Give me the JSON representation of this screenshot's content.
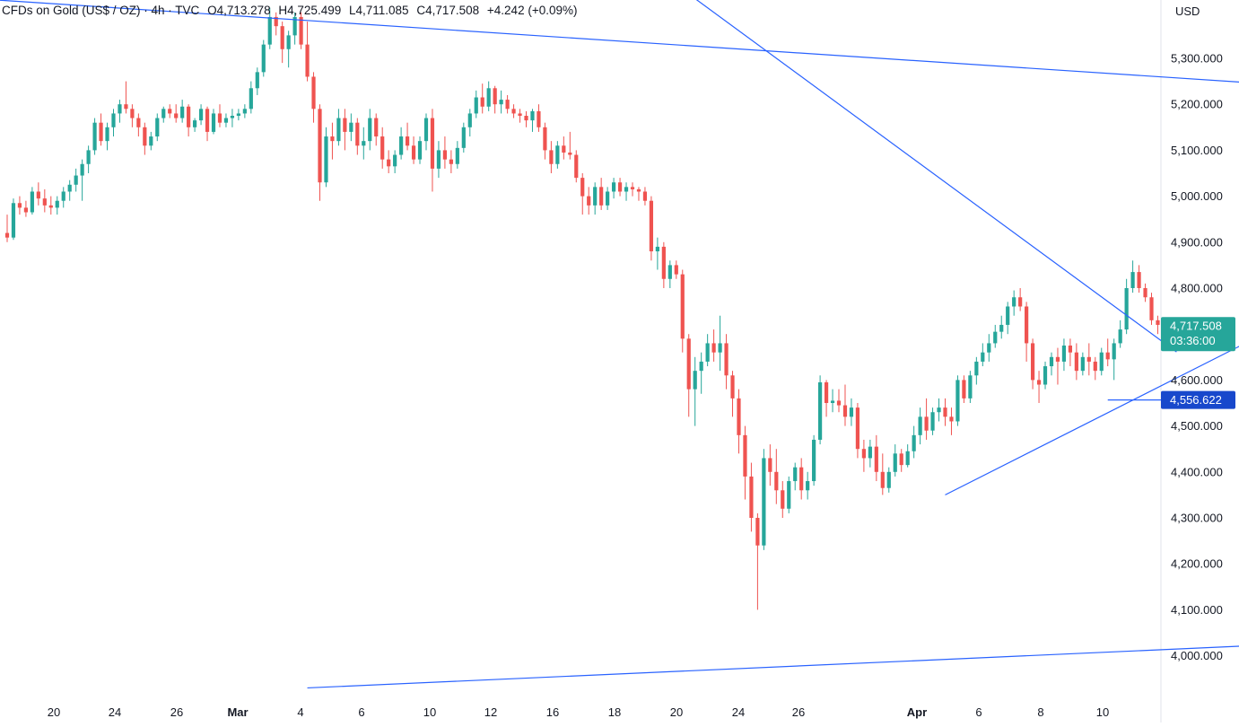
{
  "header": {
    "symbol": "CFDs on Gold (US$ / OZ) · 4h · TVC",
    "open": "O4,713.278",
    "high": "H4,725.499",
    "low": "L4,711.085",
    "close": "C4,717.508",
    "change": "+4.242 (+0.09%)"
  },
  "currency_label": "USD",
  "chart_data": {
    "type": "candlestick",
    "title": "CFDs on Gold (US$ / OZ) · 4h · TVC",
    "ylim": [
      3930,
      5420
    ],
    "y_ticks": [
      "5,300.000",
      "5,200.000",
      "5,100.000",
      "5,000.000",
      "4,900.000",
      "4,800.000",
      "4,700.000",
      "4,600.000",
      "4,500.000",
      "4,400.000",
      "4,300.000",
      "4,200.000",
      "4,100.000",
      "4,000.000"
    ],
    "y_tick_values": [
      5300,
      5200,
      5100,
      5000,
      4900,
      4800,
      4700,
      4600,
      4500,
      4400,
      4300,
      4200,
      4100,
      4000
    ],
    "x_labels": [
      {
        "text": "20",
        "bold": false
      },
      {
        "text": "24",
        "bold": false
      },
      {
        "text": "26",
        "bold": false
      },
      {
        "text": "Mar",
        "bold": true
      },
      {
        "text": "4",
        "bold": false
      },
      {
        "text": "6",
        "bold": false
      },
      {
        "text": "10",
        "bold": false
      },
      {
        "text": "12",
        "bold": false
      },
      {
        "text": "16",
        "bold": false
      },
      {
        "text": "18",
        "bold": false
      },
      {
        "text": "20",
        "bold": false
      },
      {
        "text": "24",
        "bold": false
      },
      {
        "text": "26",
        "bold": false
      },
      {
        "text": "Apr",
        "bold": true
      },
      {
        "text": "6",
        "bold": false
      },
      {
        "text": "8",
        "bold": false
      },
      {
        "text": "10",
        "bold": false
      }
    ],
    "candles": [
      [
        4920,
        4960,
        4900,
        4910
      ],
      [
        4910,
        4995,
        4905,
        4985
      ],
      [
        4985,
        5000,
        4960,
        4975
      ],
      [
        4975,
        4990,
        4955,
        4965
      ],
      [
        4965,
        5020,
        4960,
        5010
      ],
      [
        5010,
        5030,
        4980,
        4995
      ],
      [
        4995,
        5015,
        4965,
        4980
      ],
      [
        4980,
        5000,
        4960,
        4975
      ],
      [
        4975,
        5000,
        4960,
        4990
      ],
      [
        4990,
        5020,
        4975,
        5010
      ],
      [
        5010,
        5035,
        4990,
        5025
      ],
      [
        5025,
        5060,
        5010,
        5045
      ],
      [
        5045,
        5080,
        4990,
        5070
      ],
      [
        5070,
        5110,
        5050,
        5100
      ],
      [
        5100,
        5170,
        5090,
        5160
      ],
      [
        5160,
        5180,
        5110,
        5120
      ],
      [
        5120,
        5160,
        5100,
        5150
      ],
      [
        5150,
        5190,
        5130,
        5180
      ],
      [
        5180,
        5210,
        5160,
        5200
      ],
      [
        5200,
        5250,
        5180,
        5190
      ],
      [
        5190,
        5200,
        5150,
        5170
      ],
      [
        5170,
        5180,
        5130,
        5150
      ],
      [
        5150,
        5160,
        5090,
        5110
      ],
      [
        5110,
        5140,
        5100,
        5130
      ],
      [
        5130,
        5180,
        5120,
        5170
      ],
      [
        5170,
        5195,
        5160,
        5190
      ],
      [
        5190,
        5200,
        5170,
        5180
      ],
      [
        5180,
        5200,
        5160,
        5170
      ],
      [
        5170,
        5210,
        5160,
        5195
      ],
      [
        5195,
        5200,
        5130,
        5150
      ],
      [
        5150,
        5170,
        5140,
        5165
      ],
      [
        5165,
        5200,
        5155,
        5190
      ],
      [
        5190,
        5195,
        5120,
        5140
      ],
      [
        5140,
        5190,
        5135,
        5180
      ],
      [
        5180,
        5200,
        5150,
        5160
      ],
      [
        5160,
        5180,
        5150,
        5170
      ],
      [
        5170,
        5190,
        5150,
        5175
      ],
      [
        5175,
        5190,
        5165,
        5180
      ],
      [
        5180,
        5200,
        5170,
        5190
      ],
      [
        5190,
        5250,
        5180,
        5235
      ],
      [
        5235,
        5280,
        5220,
        5270
      ],
      [
        5270,
        5340,
        5260,
        5330
      ],
      [
        5330,
        5410,
        5320,
        5390
      ],
      [
        5390,
        5400,
        5350,
        5370
      ],
      [
        5370,
        5380,
        5290,
        5320
      ],
      [
        5320,
        5360,
        5280,
        5350
      ],
      [
        5350,
        5400,
        5330,
        5390
      ],
      [
        5390,
        5400,
        5320,
        5330
      ],
      [
        5330,
        5380,
        5250,
        5260
      ],
      [
        5260,
        5270,
        5160,
        5190
      ],
      [
        5190,
        5200,
        4990,
        5030
      ],
      [
        5030,
        5150,
        5020,
        5130
      ],
      [
        5130,
        5160,
        5080,
        5120
      ],
      [
        5120,
        5190,
        5110,
        5170
      ],
      [
        5170,
        5190,
        5100,
        5140
      ],
      [
        5140,
        5180,
        5120,
        5160
      ],
      [
        5160,
        5170,
        5090,
        5110
      ],
      [
        5110,
        5150,
        5080,
        5120
      ],
      [
        5120,
        5190,
        5100,
        5170
      ],
      [
        5170,
        5180,
        5110,
        5130
      ],
      [
        5130,
        5150,
        5060,
        5080
      ],
      [
        5080,
        5100,
        5050,
        5065
      ],
      [
        5065,
        5100,
        5050,
        5090
      ],
      [
        5090,
        5150,
        5080,
        5130
      ],
      [
        5130,
        5160,
        5100,
        5110
      ],
      [
        5110,
        5130,
        5070,
        5080
      ],
      [
        5080,
        5130,
        5070,
        5120
      ],
      [
        5120,
        5180,
        5100,
        5170
      ],
      [
        5170,
        5190,
        5010,
        5060
      ],
      [
        5060,
        5120,
        5040,
        5100
      ],
      [
        5100,
        5130,
        5060,
        5080
      ],
      [
        5080,
        5100,
        5050,
        5070
      ],
      [
        5070,
        5120,
        5060,
        5105
      ],
      [
        5105,
        5160,
        5095,
        5150
      ],
      [
        5150,
        5190,
        5130,
        5180
      ],
      [
        5180,
        5230,
        5170,
        5215
      ],
      [
        5215,
        5245,
        5180,
        5195
      ],
      [
        5195,
        5250,
        5185,
        5235
      ],
      [
        5235,
        5240,
        5180,
        5200
      ],
      [
        5200,
        5230,
        5180,
        5210
      ],
      [
        5210,
        5220,
        5180,
        5190
      ],
      [
        5190,
        5200,
        5170,
        5180
      ],
      [
        5180,
        5190,
        5160,
        5175
      ],
      [
        5175,
        5185,
        5150,
        5165
      ],
      [
        5165,
        5190,
        5140,
        5185
      ],
      [
        5185,
        5200,
        5140,
        5150
      ],
      [
        5150,
        5160,
        5080,
        5100
      ],
      [
        5100,
        5120,
        5050,
        5070
      ],
      [
        5070,
        5120,
        5060,
        5110
      ],
      [
        5110,
        5130,
        5080,
        5095
      ],
      [
        5095,
        5140,
        5080,
        5090
      ],
      [
        5090,
        5100,
        5030,
        5040
      ],
      [
        5040,
        5050,
        4960,
        5000
      ],
      [
        5000,
        5020,
        4960,
        4980
      ],
      [
        4980,
        5030,
        4960,
        5020
      ],
      [
        5020,
        5040,
        4970,
        4980
      ],
      [
        4980,
        5020,
        4970,
        5010
      ],
      [
        5010,
        5040,
        4995,
        5030
      ],
      [
        5030,
        5040,
        5000,
        5010
      ],
      [
        5010,
        5030,
        4990,
        5020
      ],
      [
        5020,
        5030,
        5000,
        5015
      ],
      [
        5015,
        5020,
        4990,
        5010
      ],
      [
        5010,
        5020,
        4980,
        4990
      ],
      [
        4990,
        5000,
        4860,
        4880
      ],
      [
        4880,
        4910,
        4840,
        4890
      ],
      [
        4890,
        4900,
        4800,
        4820
      ],
      [
        4820,
        4860,
        4800,
        4850
      ],
      [
        4850,
        4860,
        4820,
        4830
      ],
      [
        4830,
        4840,
        4660,
        4690
      ],
      [
        4690,
        4700,
        4520,
        4580
      ],
      [
        4580,
        4650,
        4500,
        4620
      ],
      [
        4620,
        4660,
        4570,
        4640
      ],
      [
        4640,
        4700,
        4630,
        4680
      ],
      [
        4680,
        4710,
        4640,
        4660
      ],
      [
        4660,
        4740,
        4620,
        4680
      ],
      [
        4680,
        4700,
        4580,
        4610
      ],
      [
        4610,
        4620,
        4520,
        4560
      ],
      [
        4560,
        4580,
        4440,
        4480
      ],
      [
        4480,
        4500,
        4340,
        4390
      ],
      [
        4390,
        4420,
        4270,
        4300
      ],
      [
        4300,
        4310,
        4100,
        4240
      ],
      [
        4240,
        4450,
        4230,
        4430
      ],
      [
        4430,
        4460,
        4370,
        4400
      ],
      [
        4400,
        4450,
        4330,
        4360
      ],
      [
        4360,
        4380,
        4300,
        4320
      ],
      [
        4320,
        4390,
        4310,
        4380
      ],
      [
        4380,
        4420,
        4360,
        4410
      ],
      [
        4410,
        4430,
        4340,
        4360
      ],
      [
        4360,
        4400,
        4340,
        4380
      ],
      [
        4380,
        4480,
        4370,
        4470
      ],
      [
        4470,
        4610,
        4460,
        4595
      ],
      [
        4595,
        4600,
        4520,
        4550
      ],
      [
        4550,
        4580,
        4530,
        4555
      ],
      [
        4555,
        4580,
        4530,
        4545
      ],
      [
        4545,
        4590,
        4500,
        4520
      ],
      [
        4520,
        4560,
        4500,
        4540
      ],
      [
        4540,
        4550,
        4430,
        4450
      ],
      [
        4450,
        4470,
        4400,
        4430
      ],
      [
        4430,
        4470,
        4410,
        4455
      ],
      [
        4455,
        4480,
        4380,
        4400
      ],
      [
        4400,
        4440,
        4350,
        4365
      ],
      [
        4365,
        4410,
        4355,
        4400
      ],
      [
        4400,
        4460,
        4390,
        4440
      ],
      [
        4440,
        4450,
        4400,
        4415
      ],
      [
        4415,
        4460,
        4410,
        4445
      ],
      [
        4445,
        4500,
        4430,
        4480
      ],
      [
        4480,
        4540,
        4460,
        4520
      ],
      [
        4520,
        4560,
        4470,
        4490
      ],
      [
        4490,
        4540,
        4480,
        4530
      ],
      [
        4530,
        4560,
        4510,
        4540
      ],
      [
        4540,
        4560,
        4500,
        4520
      ],
      [
        4520,
        4540,
        4480,
        4510
      ],
      [
        4510,
        4610,
        4500,
        4600
      ],
      [
        4600,
        4610,
        4550,
        4560
      ],
      [
        4560,
        4620,
        4550,
        4610
      ],
      [
        4610,
        4650,
        4590,
        4640
      ],
      [
        4640,
        4680,
        4630,
        4660
      ],
      [
        4660,
        4700,
        4640,
        4680
      ],
      [
        4680,
        4720,
        4670,
        4705
      ],
      [
        4705,
        4740,
        4690,
        4720
      ],
      [
        4720,
        4770,
        4700,
        4760
      ],
      [
        4760,
        4795,
        4740,
        4780
      ],
      [
        4780,
        4800,
        4750,
        4760
      ],
      [
        4760,
        4770,
        4640,
        4680
      ],
      [
        4680,
        4690,
        4580,
        4600
      ],
      [
        4600,
        4620,
        4550,
        4590
      ],
      [
        4590,
        4640,
        4580,
        4630
      ],
      [
        4630,
        4660,
        4610,
        4650
      ],
      [
        4650,
        4670,
        4590,
        4640
      ],
      [
        4640,
        4690,
        4620,
        4675
      ],
      [
        4675,
        4690,
        4630,
        4660
      ],
      [
        4660,
        4680,
        4600,
        4620
      ],
      [
        4620,
        4660,
        4610,
        4650
      ],
      [
        4650,
        4680,
        4610,
        4640
      ],
      [
        4640,
        4650,
        4600,
        4620
      ],
      [
        4620,
        4670,
        4610,
        4660
      ],
      [
        4660,
        4690,
        4630,
        4645
      ],
      [
        4645,
        4690,
        4600,
        4680
      ],
      [
        4680,
        4730,
        4670,
        4710
      ],
      [
        4710,
        4820,
        4700,
        4800
      ],
      [
        4800,
        4860,
        4790,
        4835
      ],
      [
        4835,
        4850,
        4790,
        4800
      ],
      [
        4800,
        4810,
        4770,
        4780
      ],
      [
        4780,
        4790,
        4720,
        4730
      ],
      [
        4730,
        4740,
        4700,
        4720
      ],
      [
        4720,
        4730,
        4705,
        4715
      ],
      [
        4713.278,
        4725.499,
        4711.085,
        4717.508
      ]
    ],
    "trendlines": [
      {
        "from": [
          -5,
          5430
        ],
        "to": [
          301,
          5155
        ]
      },
      {
        "from": [
          110,
          5430
        ],
        "to": [
          187,
          4661
        ]
      },
      {
        "from": [
          150,
          4350
        ],
        "to": [
          206,
          4735
        ]
      },
      {
        "from": [
          48,
          3930
        ],
        "to": [
          214,
          4031
        ]
      }
    ],
    "support_level": {
      "value": 4556.622,
      "label": "4,556.622",
      "from_candle": 176
    },
    "last_price": {
      "value": 4717.508,
      "label": "4,717.508",
      "countdown": "03:36:00"
    }
  }
}
